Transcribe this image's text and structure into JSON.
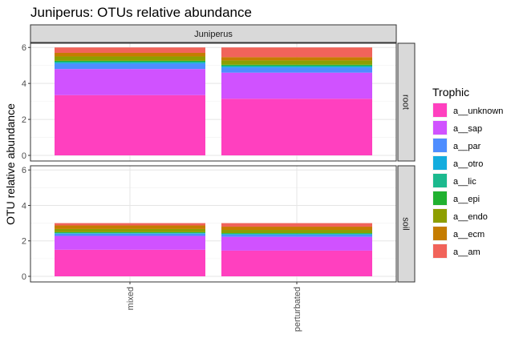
{
  "chart_data": {
    "type": "bar",
    "stacked": true,
    "title": "Juniperus: OTUs relative abundance",
    "column_facet": "Juniperus",
    "row_facets": [
      "root",
      "soil"
    ],
    "categories": [
      "mixed",
      "perturbated"
    ],
    "xlabel": "",
    "ylabel": "OTU relative abundance",
    "ylim": [
      0,
      6.1
    ],
    "yticks": [
      0,
      2,
      4,
      6
    ],
    "grid": true,
    "legend": {
      "title": "Trophic",
      "placement": "right"
    },
    "series": [
      {
        "name": "a__unknown",
        "color": "#FF40BF",
        "values": {
          "root": [
            3.35,
            3.15
          ],
          "soil": [
            1.5,
            1.45
          ]
        }
      },
      {
        "name": "a__sap",
        "color": "#D052FF",
        "values": {
          "root": [
            1.45,
            1.45
          ],
          "soil": [
            0.78,
            0.78
          ]
        }
      },
      {
        "name": "a__par",
        "color": "#4E8DFF",
        "values": {
          "root": [
            0.3,
            0.28
          ],
          "soil": [
            0.12,
            0.12
          ]
        }
      },
      {
        "name": "a__otro",
        "color": "#13ACDE",
        "values": {
          "root": [
            0.06,
            0.06
          ],
          "soil": [
            0.03,
            0.03
          ]
        }
      },
      {
        "name": "a__lic",
        "color": "#1CB98E",
        "values": {
          "root": [
            0.05,
            0.05
          ],
          "soil": [
            0.03,
            0.03
          ]
        }
      },
      {
        "name": "a__epi",
        "color": "#20B130",
        "values": {
          "root": [
            0.05,
            0.05
          ],
          "soil": [
            0.03,
            0.03
          ]
        }
      },
      {
        "name": "a__endo",
        "color": "#8D9E00",
        "values": {
          "root": [
            0.24,
            0.24
          ],
          "soil": [
            0.18,
            0.18
          ]
        }
      },
      {
        "name": "a__ecm",
        "color": "#C57C00",
        "values": {
          "root": [
            0.2,
            0.18
          ],
          "soil": [
            0.2,
            0.18
          ]
        }
      },
      {
        "name": "a__am",
        "color": "#F1635A",
        "values": {
          "root": [
            0.3,
            0.54
          ],
          "soil": [
            0.13,
            0.2
          ]
        }
      }
    ]
  }
}
